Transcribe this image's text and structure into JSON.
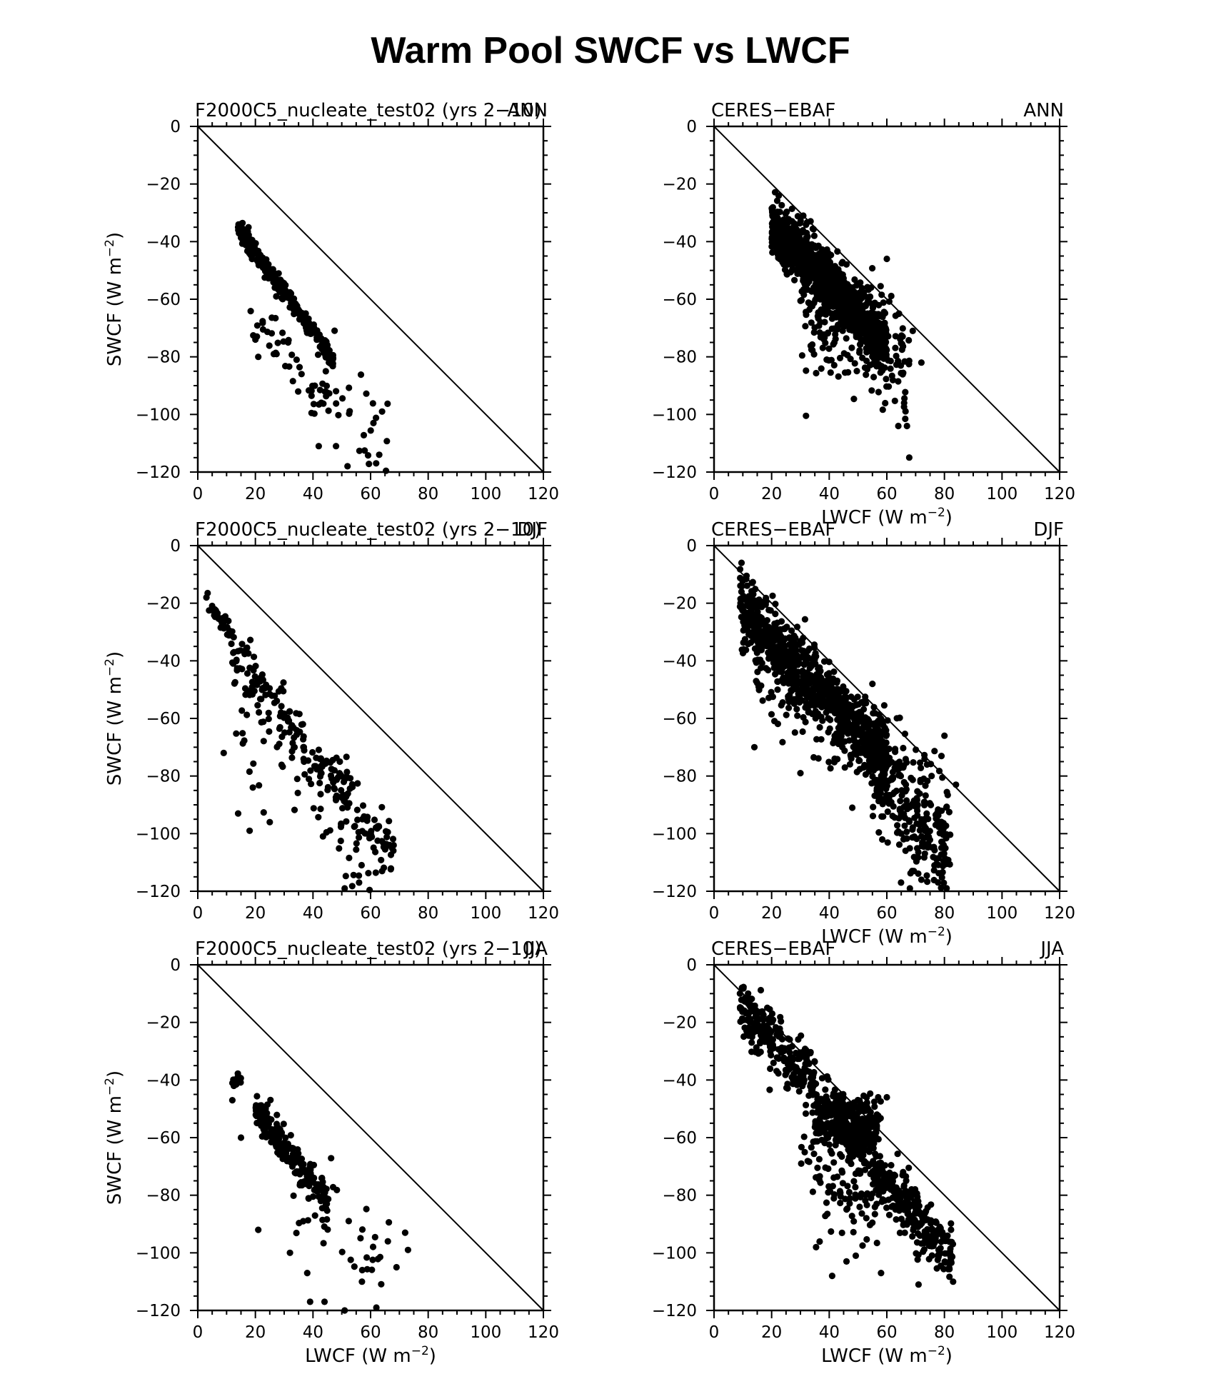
{
  "figure": {
    "title": "Warm Pool SWCF vs LWCF"
  },
  "chart_data": [
    {
      "type": "scatter",
      "left_label": "F2000C5_nucleate_test02 (yrs 2−10)",
      "right_label": "ANN",
      "ylabel": "SWCF (W m",
      "ylabel_unit": "−2",
      "ylabel_close": ")",
      "xlabel": "",
      "xlim": [
        0,
        120
      ],
      "ylim": [
        -120,
        0
      ],
      "xticks": [
        "0",
        "20",
        "40",
        "60",
        "80",
        "100",
        "120"
      ],
      "yticks": [
        "0",
        "−20",
        "−40",
        "−60",
        "−80",
        "−100",
        "−120"
      ],
      "reference_line": [
        [
          0,
          0
        ],
        [
          120,
          -120
        ]
      ],
      "spread_color": "#000000",
      "clusters": [
        {
          "x0": 14,
          "x1": 47,
          "n": 260,
          "slope": -1.38,
          "icpt": -16,
          "sd": 1.6
        },
        {
          "x0": 18,
          "x1": 46,
          "n": 40,
          "slope": -1.15,
          "icpt": -44,
          "sd": 4
        },
        {
          "x0": 38,
          "x1": 66,
          "n": 32,
          "slope": -0.9,
          "icpt": -52,
          "sd": 8
        }
      ],
      "points": [
        [
          14,
          -35
        ],
        [
          15,
          -36
        ],
        [
          21,
          -80
        ],
        [
          20,
          -74
        ],
        [
          52,
          -118
        ],
        [
          63,
          -114
        ],
        [
          64,
          -99
        ],
        [
          48,
          -111
        ],
        [
          42,
          -111
        ],
        [
          61,
          -103
        ]
      ]
    },
    {
      "type": "scatter",
      "left_label": "CERES−EBAF",
      "right_label": "ANN",
      "ylabel": "",
      "xlabel": "LWCF (W m",
      "xlabel_unit": "−2",
      "xlabel_close": ")",
      "xlim": [
        0,
        120
      ],
      "ylim": [
        -120,
        0
      ],
      "xticks": [
        "0",
        "20",
        "40",
        "60",
        "80",
        "100",
        "120"
      ],
      "yticks": [
        "0",
        "−20",
        "−40",
        "−60",
        "−80",
        "−100",
        "−120"
      ],
      "reference_line": [
        [
          0,
          0
        ],
        [
          120,
          -120
        ]
      ],
      "clusters": [
        {
          "x0": 20,
          "x1": 60,
          "n": 1100,
          "slope": -1.05,
          "icpt": -13,
          "sd": 5
        },
        {
          "x0": 30,
          "x1": 68,
          "n": 220,
          "slope": -0.6,
          "icpt": -42,
          "sd": 12
        }
      ],
      "points": [
        [
          31,
          -31
        ],
        [
          60,
          -46
        ],
        [
          67,
          -104
        ],
        [
          64,
          -104
        ],
        [
          72,
          -82
        ],
        [
          69,
          -71
        ],
        [
          66,
          -96
        ],
        [
          22,
          -35
        ]
      ]
    },
    {
      "type": "scatter",
      "left_label": "F2000C5_nucleate_test02 (yrs 2−10)",
      "right_label": "DJF",
      "ylabel": "SWCF (W m",
      "ylabel_unit": "−2",
      "ylabel_close": ")",
      "xlabel": "",
      "xlim": [
        0,
        120
      ],
      "ylim": [
        -120,
        0
      ],
      "xticks": [
        "0",
        "20",
        "40",
        "60",
        "80",
        "100",
        "120"
      ],
      "yticks": [
        "0",
        "−20",
        "−40",
        "−60",
        "−80",
        "−100",
        "−120"
      ],
      "reference_line": [
        [
          0,
          0
        ],
        [
          120,
          -120
        ]
      ],
      "clusters": [
        {
          "x0": 3,
          "x1": 12,
          "n": 30,
          "slope": -1.4,
          "icpt": -14,
          "sd": 2
        },
        {
          "x0": 10,
          "x1": 68,
          "n": 210,
          "slope": -1.25,
          "icpt": -22,
          "sd": 5
        },
        {
          "x0": 12,
          "x1": 60,
          "n": 60,
          "slope": -1.1,
          "icpt": -45,
          "sd": 9
        }
      ],
      "points": [
        [
          3,
          -18
        ],
        [
          9,
          -72
        ],
        [
          14,
          -93
        ],
        [
          18,
          -99
        ],
        [
          25,
          -96
        ],
        [
          51,
          -119
        ],
        [
          56,
          -117
        ],
        [
          64,
          -113
        ],
        [
          68,
          -104
        ]
      ]
    },
    {
      "type": "scatter",
      "left_label": "CERES−EBAF",
      "right_label": "DJF",
      "ylabel": "",
      "xlabel": "LWCF (W m",
      "xlabel_unit": "−2",
      "xlabel_close": ")",
      "xlim": [
        0,
        120
      ],
      "ylim": [
        -120,
        0
      ],
      "xticks": [
        "0",
        "20",
        "40",
        "60",
        "80",
        "100",
        "120"
      ],
      "yticks": [
        "0",
        "−20",
        "−40",
        "−60",
        "−80",
        "−100",
        "−120"
      ],
      "reference_line": [
        [
          0,
          0
        ],
        [
          120,
          -120
        ]
      ],
      "clusters": [
        {
          "x0": 9,
          "x1": 60,
          "n": 900,
          "slope": -1.05,
          "icpt": -12,
          "sd": 6
        },
        {
          "x0": 55,
          "x1": 82,
          "n": 280,
          "slope": -1.2,
          "icpt": -9,
          "sd": 11
        },
        {
          "x0": 14,
          "x1": 45,
          "n": 60,
          "slope": -0.9,
          "icpt": -30,
          "sd": 10
        }
      ],
      "points": [
        [
          14,
          -70
        ],
        [
          30,
          -79
        ],
        [
          48,
          -91
        ],
        [
          68,
          -119
        ],
        [
          72,
          -116
        ],
        [
          84,
          -83
        ],
        [
          80,
          -66
        ],
        [
          55,
          -48
        ]
      ]
    },
    {
      "type": "scatter",
      "left_label": "F2000C5_nucleate_test02 (yrs 2−10)",
      "right_label": "JJA",
      "ylabel": "SWCF (W m",
      "ylabel_unit": "−2",
      "ylabel_close": ")",
      "xlabel": "LWCF (W m",
      "xlabel_unit": "−2",
      "xlabel_close": ")",
      "xlim": [
        0,
        120
      ],
      "ylim": [
        -120,
        0
      ],
      "xticks": [
        "0",
        "20",
        "40",
        "60",
        "80",
        "100",
        "120"
      ],
      "yticks": [
        "0",
        "−20",
        "−40",
        "−60",
        "−80",
        "−100",
        "−120"
      ],
      "reference_line": [
        [
          0,
          0
        ],
        [
          120,
          -120
        ]
      ],
      "clusters": [
        {
          "x0": 12,
          "x1": 15,
          "n": 14,
          "slope": 0,
          "icpt": -40,
          "sd": 1.2
        },
        {
          "x0": 20,
          "x1": 45,
          "n": 220,
          "slope": -1.25,
          "icpt": -25,
          "sd": 3
        },
        {
          "x0": 32,
          "x1": 68,
          "n": 38,
          "slope": -0.85,
          "icpt": -50,
          "sd": 8
        }
      ],
      "points": [
        [
          12,
          -47
        ],
        [
          15,
          -60
        ],
        [
          21,
          -92
        ],
        [
          32,
          -100
        ],
        [
          38,
          -107
        ],
        [
          39,
          -117
        ],
        [
          44,
          -117
        ],
        [
          51,
          -120
        ],
        [
          62,
          -119
        ],
        [
          57,
          -110
        ],
        [
          72,
          -93
        ],
        [
          73,
          -99
        ],
        [
          69,
          -105
        ],
        [
          66,
          -96
        ]
      ]
    },
    {
      "type": "scatter",
      "left_label": "CERES−EBAF",
      "right_label": "JJA",
      "ylabel": "",
      "xlabel": "LWCF (W m",
      "xlabel_unit": "−2",
      "xlabel_close": ")",
      "xlim": [
        0,
        120
      ],
      "ylim": [
        -120,
        0
      ],
      "xticks": [
        "0",
        "20",
        "40",
        "60",
        "80",
        "100",
        "120"
      ],
      "yticks": [
        "0",
        "−20",
        "−40",
        "−60",
        "−80",
        "−100",
        "−120"
      ],
      "reference_line": [
        [
          0,
          0
        ],
        [
          120,
          -120
        ]
      ],
      "clusters": [
        {
          "x0": 9,
          "x1": 35,
          "n": 250,
          "slope": -1.0,
          "icpt": -6,
          "sd": 5
        },
        {
          "x0": 35,
          "x1": 58,
          "n": 300,
          "slope": -0.15,
          "icpt": -47,
          "sd": 5
        },
        {
          "x0": 42,
          "x1": 83,
          "n": 380,
          "slope": -1.2,
          "icpt": -3,
          "sd": 5
        },
        {
          "x0": 30,
          "x1": 58,
          "n": 90,
          "slope": -0.6,
          "icpt": -50,
          "sd": 10
        }
      ],
      "points": [
        [
          9,
          -10
        ],
        [
          41,
          -108
        ],
        [
          46,
          -103
        ],
        [
          58,
          -107
        ],
        [
          71,
          -111
        ],
        [
          83,
          -110
        ],
        [
          57,
          -46
        ],
        [
          60,
          -46
        ]
      ]
    }
  ]
}
